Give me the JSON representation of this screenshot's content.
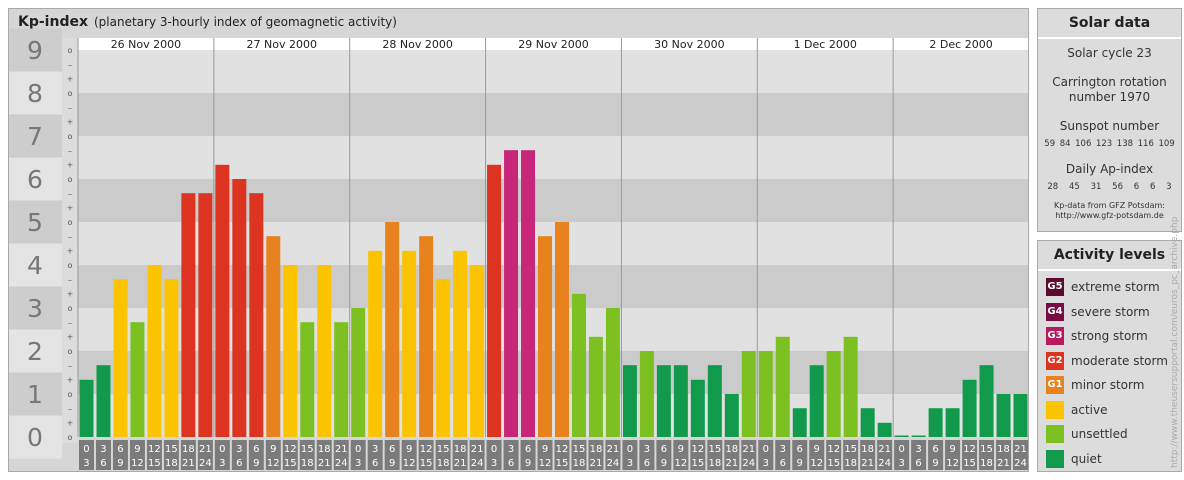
{
  "title": "Kp-index",
  "subtitle": "(planetary 3-hourly index of geomagnetic activity)",
  "chart_data": {
    "type": "bar",
    "title": "Kp-index",
    "subtitle": "(planetary 3-hourly index of geomagnetic activity)",
    "ylim": [
      0,
      9
    ],
    "y_ticks": [
      "0",
      "1",
      "2",
      "3",
      "4",
      "5",
      "6",
      "7",
      "8",
      "9"
    ],
    "sub_ticks": [
      "o",
      "+",
      "–"
    ],
    "days": [
      "26 Nov 2000",
      "27 Nov 2000",
      "28 Nov 2000",
      "29 Nov 2000",
      "30 Nov 2000",
      "1 Dec 2000",
      "2 Dec 2000"
    ],
    "interval_start": [
      "0",
      "3",
      "6",
      "9",
      "12",
      "15",
      "18",
      "21"
    ],
    "interval_end": [
      "3",
      "6",
      "9",
      "12",
      "15",
      "18",
      "21",
      "24"
    ],
    "values": [
      [
        1.33,
        1.67,
        3.67,
        2.67,
        4.0,
        3.67,
        5.67,
        5.67
      ],
      [
        6.33,
        6.0,
        5.67,
        4.67,
        4.0,
        2.67,
        4.0,
        2.67
      ],
      [
        3.0,
        4.33,
        5.0,
        4.33,
        4.67,
        3.67,
        4.33,
        4.0
      ],
      [
        6.33,
        6.67,
        6.67,
        4.67,
        5.0,
        3.33,
        2.33,
        3.0
      ],
      [
        1.67,
        2.0,
        1.67,
        1.67,
        1.33,
        1.67,
        1.0,
        2.0
      ],
      [
        2.0,
        2.33,
        0.67,
        1.67,
        2.0,
        2.33,
        0.67,
        0.33
      ],
      [
        0.0,
        0.0,
        0.67,
        0.67,
        1.33,
        1.67,
        1.0,
        1.0
      ]
    ],
    "level_colors": {
      "quiet": "#129a4c",
      "unsettled": "#7cc022",
      "active": "#fcc400",
      "minor": "#e7821e",
      "moderate": "#dc3420",
      "strong": "#c8267a",
      "severe": "#a50f5c",
      "extreme": "#5a0b2e"
    }
  },
  "solar": {
    "heading": "Solar data",
    "cycle": "Solar cycle 23",
    "carrington_line1": "Carrington rotation",
    "carrington_line2": "number 1970",
    "sunspot_label": "Sunspot number",
    "sunspot_values": [
      "59",
      "84",
      "106",
      "123",
      "138",
      "116",
      "109"
    ],
    "ap_label": "Daily Ap-index",
    "ap_values": [
      "28",
      "45",
      "31",
      "56",
      "6",
      "6",
      "3"
    ],
    "source_line1": "Kp-data from GFZ Potsdam:",
    "source_line2": "http://www.gfz-potsdam.de"
  },
  "activity": {
    "heading": "Activity levels",
    "items": [
      {
        "code": "G5",
        "label": "extreme storm",
        "color": "#5a0b2e"
      },
      {
        "code": "G4",
        "label": "severe storm",
        "color": "#7a0c44"
      },
      {
        "code": "G3",
        "label": "strong storm",
        "color": "#b6195e"
      },
      {
        "code": "G2",
        "label": "moderate storm",
        "color": "#dc3420"
      },
      {
        "code": "G1",
        "label": "minor storm",
        "color": "#e7821e"
      },
      {
        "code": "",
        "label": "active",
        "color": "#fcc400"
      },
      {
        "code": "",
        "label": "unsettled",
        "color": "#7cc022"
      },
      {
        "code": "",
        "label": "quiet",
        "color": "#129a4c"
      }
    ]
  },
  "credit": "http://www.theusersupportal.com/euros_pc_archive.php"
}
